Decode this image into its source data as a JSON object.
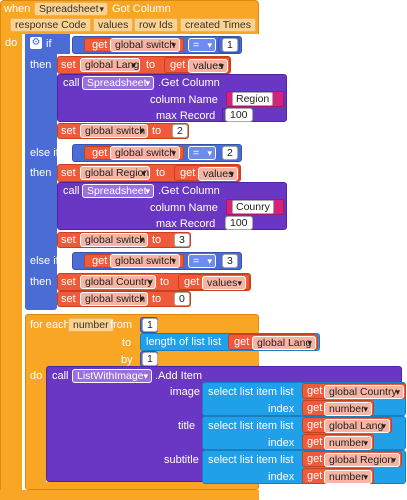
{
  "event": {
    "when": "when",
    "component": "Spreadsheet",
    "event_name": "Got Column",
    "params": [
      "response Code",
      "values",
      "row Ids",
      "created Times"
    ],
    "do": "do"
  },
  "common": {
    "if": "if",
    "then": "then",
    "else_if": "else if",
    "get": "get",
    "set": "set",
    "to": "to",
    "call": "call",
    "get_column": ".Get Column",
    "column_name": "column Name",
    "max_record": "max Record",
    "eq": "=",
    "values": "values",
    "spreadsheet": "Spreadsheet"
  },
  "branches": [
    {
      "compare_var": "global switch",
      "compare_val": "1",
      "set_var": "global Lang",
      "column": "Region",
      "max": "100",
      "switch_to": "2"
    },
    {
      "compare_var": "global switch",
      "compare_val": "2",
      "set_var": "global Region",
      "column": "Counry",
      "max": "100",
      "switch_to": "3"
    },
    {
      "compare_var": "global switch",
      "compare_val": "3",
      "set_var": "global Country",
      "switch_to": "0"
    }
  ],
  "foreach": {
    "for_each": "for each",
    "var": "number",
    "from": "from",
    "from_val": "1",
    "to": "to",
    "length_of_list": "length of list  list",
    "list_var": "global Lang",
    "by": "by",
    "by_val": "1",
    "do": "do"
  },
  "additem": {
    "call": "call",
    "component": "ListWithImage",
    "method": ".Add Item",
    "select_list_item": "select list item  list",
    "index": "index",
    "rows": [
      {
        "param": "image",
        "list": "global Country",
        "index": "number"
      },
      {
        "param": "title",
        "list": "global Lang",
        "index": "number"
      },
      {
        "param": "subtitle",
        "list": "global Region",
        "index": "number"
      }
    ]
  }
}
